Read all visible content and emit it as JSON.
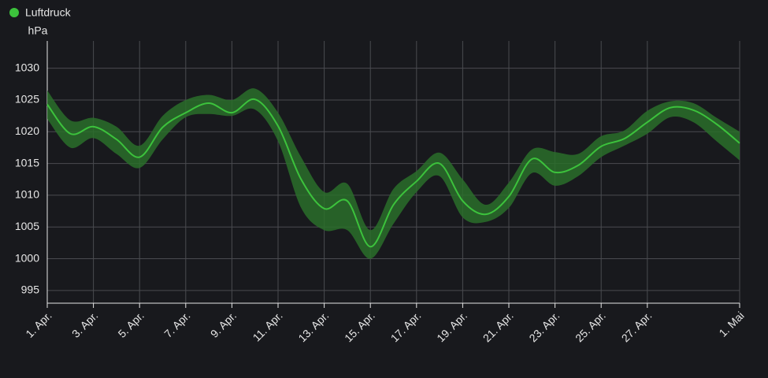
{
  "chart_data": {
    "type": "line-band",
    "y_unit": "hPa",
    "x": [
      0,
      1,
      2,
      3,
      4,
      5,
      6,
      7,
      8,
      9,
      10,
      11,
      12,
      13,
      14,
      15,
      16,
      17,
      18,
      19,
      20,
      21,
      22,
      23,
      24,
      25,
      26,
      27,
      28,
      29,
      30
    ],
    "series": [
      {
        "name": "Luftdruck",
        "color": "#3cc23c",
        "band_color": "#2a6e2a",
        "values": [
          1024.3,
          1019.7,
          1020.8,
          1018.8,
          1016,
          1020.7,
          1023,
          1024.5,
          1023,
          1025.1,
          1020.9,
          1012.5,
          1007.9,
          1009.1,
          1001.9,
          1008.5,
          1012.2,
          1015,
          1009.1,
          1007,
          1009.8,
          1015.7,
          1013.6,
          1014.7,
          1017.7,
          1018.9,
          1021.5,
          1023.8,
          1023.4,
          1021.2,
          1018.2
        ],
        "low": [
          1022,
          1017.5,
          1019,
          1016.5,
          1014.3,
          1018.8,
          1022.3,
          1022.8,
          1022.5,
          1023.5,
          1018.5,
          1008,
          1004.5,
          1004.5,
          1000,
          1005.5,
          1010.5,
          1013,
          1006.5,
          1005.8,
          1008,
          1013.5,
          1011.5,
          1013,
          1016,
          1017.8,
          1019.7,
          1022.3,
          1021.5,
          1018.5,
          1015.5
        ],
        "high": [
          1026.5,
          1021.8,
          1022.2,
          1020.8,
          1017.8,
          1022.5,
          1025,
          1025.8,
          1025,
          1026.8,
          1023,
          1016,
          1010.5,
          1011.8,
          1004.5,
          1011,
          1013.8,
          1016.7,
          1012.5,
          1008.5,
          1012,
          1017.2,
          1016.8,
          1016.5,
          1019.3,
          1020.2,
          1023.3,
          1024.8,
          1024.5,
          1022.2,
          1020
        ]
      }
    ],
    "xlim": [
      0,
      30
    ],
    "xticks": [
      {
        "value": 0,
        "label": "1. Apr."
      },
      {
        "value": 2,
        "label": "3. Apr."
      },
      {
        "value": 4,
        "label": "5. Apr."
      },
      {
        "value": 6,
        "label": "7. Apr."
      },
      {
        "value": 8,
        "label": "9. Apr."
      },
      {
        "value": 10,
        "label": "11. Apr."
      },
      {
        "value": 12,
        "label": "13. Apr."
      },
      {
        "value": 14,
        "label": "15. Apr."
      },
      {
        "value": 16,
        "label": "17. Apr."
      },
      {
        "value": 18,
        "label": "19. Apr."
      },
      {
        "value": 20,
        "label": "21. Apr."
      },
      {
        "value": 22,
        "label": "23. Apr."
      },
      {
        "value": 24,
        "label": "25. Apr."
      },
      {
        "value": 26,
        "label": "27. Apr."
      },
      {
        "value": 30,
        "label": "1. Mai"
      }
    ],
    "ylim": [
      993,
      1034.3
    ],
    "yticks": [
      995,
      1000,
      1005,
      1010,
      1015,
      1020,
      1025,
      1030
    ],
    "grid": true
  }
}
